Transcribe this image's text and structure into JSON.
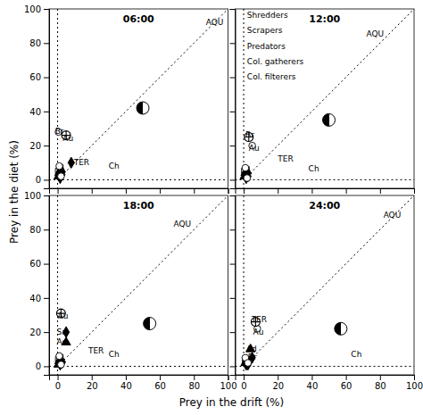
{
  "chart_data": [
    {
      "type": "scatter",
      "title": "06:00",
      "xlabel": "Prey in the drift (%)",
      "ylabel": "Prey in the diet (%)",
      "xlim": [
        -5,
        100
      ],
      "ylim": [
        -5,
        100
      ],
      "xticks": [
        0,
        20,
        40,
        60,
        80,
        100
      ],
      "yticks": [
        0,
        20,
        40,
        60,
        80,
        100
      ],
      "tick_labels": "y",
      "series": [
        {
          "type": "line",
          "line_style": "dotted",
          "color": "black",
          "x": [
            0,
            100
          ],
          "values": [
            0,
            100
          ]
        },
        {
          "type": "vline",
          "line_style": "dotted",
          "color": "black",
          "x": [
            0
          ]
        },
        {
          "type": "hline",
          "line_style": "dotted",
          "color": "black",
          "values": [
            0
          ]
        },
        {
          "type": "scatter",
          "marker": "square",
          "color": "white",
          "x": [
            0.5,
            1.0,
            1.5
          ],
          "values": [
            5,
            3,
            7
          ]
        },
        {
          "type": "scatter",
          "marker": "triangle",
          "color": "black",
          "x": [
            1.0,
            2.0,
            0.5
          ],
          "values": [
            4,
            6,
            2
          ]
        },
        {
          "type": "scatter",
          "marker": "diamond",
          "color": "black",
          "x": [
            1.5,
            2.5,
            8
          ],
          "values": [
            1,
            3,
            10
          ]
        },
        {
          "type": "scatter",
          "marker": "circle",
          "color": "white",
          "x": [
            1.0,
            2.0,
            0.5
          ],
          "values": [
            8,
            2,
            28
          ]
        },
        {
          "type": "scatter",
          "marker": "circle-plus",
          "color": "black",
          "x": [
            5
          ],
          "values": [
            26
          ]
        },
        {
          "type": "scatter",
          "marker": "half-circle",
          "color": "black",
          "x": [
            50
          ],
          "values": [
            42
          ]
        }
      ],
      "annotations": [
        {
          "text": "AQU",
          "x": 87,
          "y": 92
        },
        {
          "text": "Br",
          "x": -1.5,
          "y": 28
        },
        {
          "text": "Au",
          "x": 3,
          "y": 24
        },
        {
          "text": "TER",
          "x": 9.5,
          "y": 10
        },
        {
          "text": "Ch",
          "x": 30,
          "y": 8
        }
      ]
    },
    {
      "type": "scatter",
      "title": "12:00",
      "xlim": [
        -5,
        100
      ],
      "ylim": [
        -5,
        100
      ],
      "xticks": [
        0,
        20,
        40,
        60,
        80,
        100
      ],
      "yticks": [
        0,
        20,
        40,
        60,
        80,
        100
      ],
      "tick_labels": false,
      "series": [
        {
          "type": "line",
          "line_style": "dotted",
          "color": "black",
          "x": [
            0,
            100
          ],
          "values": [
            0,
            100
          ]
        },
        {
          "type": "vline",
          "line_style": "dotted",
          "color": "black",
          "x": [
            0
          ]
        },
        {
          "type": "hline",
          "line_style": "dotted",
          "color": "black",
          "values": [
            0
          ]
        },
        {
          "type": "scatter",
          "marker": "square",
          "color": "white",
          "x": [
            0.5,
            1.0,
            1.5
          ],
          "values": [
            5,
            3,
            6
          ]
        },
        {
          "type": "scatter",
          "marker": "triangle",
          "color": "black",
          "x": [
            1.0,
            2.0,
            0.5
          ],
          "values": [
            4,
            5,
            2
          ]
        },
        {
          "type": "scatter",
          "marker": "diamond",
          "color": "black",
          "x": [
            1.5,
            2.5
          ],
          "values": [
            1,
            2
          ]
        },
        {
          "type": "scatter",
          "marker": "circle",
          "color": "white",
          "x": [
            1.0,
            2.0,
            5
          ],
          "values": [
            7,
            1,
            20
          ]
        },
        {
          "type": "scatter",
          "marker": "circle-plus",
          "color": "black",
          "x": [
            3
          ],
          "values": [
            25
          ]
        },
        {
          "type": "scatter",
          "marker": "half-circle",
          "color": "black",
          "x": [
            50
          ],
          "values": [
            35
          ]
        }
      ],
      "annotations": [
        {
          "text": "AQU",
          "x": 72,
          "y": 85
        },
        {
          "text": "Shredders",
          "x": 2,
          "y": 96
        },
        {
          "text": "Scrapers",
          "x": 2,
          "y": 87
        },
        {
          "text": "Predators",
          "x": 2,
          "y": 78
        },
        {
          "text": "Col. gatherers",
          "x": 2,
          "y": 69
        },
        {
          "text": "Col. filterers",
          "x": 2,
          "y": 60
        },
        {
          "text": "Br",
          "x": 1,
          "y": 26
        },
        {
          "text": "Au",
          "x": 3,
          "y": 18
        },
        {
          "text": "TER",
          "x": 20,
          "y": 12
        },
        {
          "text": "Ch",
          "x": 38,
          "y": 6
        }
      ]
    },
    {
      "type": "scatter",
      "title": "18:00",
      "xlim": [
        -5,
        100
      ],
      "ylim": [
        -5,
        100
      ],
      "xticks": [
        0,
        20,
        40,
        60,
        80,
        100
      ],
      "yticks": [
        0,
        20,
        40,
        60,
        80,
        100
      ],
      "series": [
        {
          "type": "line",
          "line_style": "dotted",
          "color": "black",
          "x": [
            0,
            100
          ],
          "values": [
            0,
            100
          ]
        },
        {
          "type": "vline",
          "line_style": "dotted",
          "color": "black",
          "x": [
            0
          ]
        },
        {
          "type": "hline",
          "line_style": "dotted",
          "color": "black",
          "values": [
            0
          ]
        },
        {
          "type": "scatter",
          "marker": "square",
          "color": "white",
          "x": [
            0.5,
            1.0,
            1.5
          ],
          "values": [
            4,
            2,
            5
          ]
        },
        {
          "type": "scatter",
          "marker": "triangle",
          "color": "black",
          "x": [
            1.0,
            2.0,
            0.5,
            5
          ],
          "values": [
            3,
            4,
            1,
            14
          ]
        },
        {
          "type": "scatter",
          "marker": "diamond",
          "color": "black",
          "x": [
            1.5,
            2.5,
            5
          ],
          "values": [
            1,
            2,
            20
          ]
        },
        {
          "type": "scatter",
          "marker": "circle",
          "color": "white",
          "x": [
            1.0,
            2.0
          ],
          "values": [
            6,
            1
          ]
        },
        {
          "type": "scatter",
          "marker": "circle-plus",
          "color": "black",
          "x": [
            2
          ],
          "values": [
            31
          ]
        },
        {
          "type": "scatter",
          "marker": "half-circle",
          "color": "black",
          "x": [
            54
          ],
          "values": [
            25
          ]
        }
      ],
      "annotations": [
        {
          "text": "AQU",
          "x": 68,
          "y": 83
        },
        {
          "text": "Au",
          "x": 0,
          "y": 29
        },
        {
          "text": "Sa",
          "x": -0.5,
          "y": 20
        },
        {
          "text": "Ad",
          "x": -0.5,
          "y": 14
        },
        {
          "text": "TER",
          "x": 18,
          "y": 9
        },
        {
          "text": "Ch",
          "x": 30,
          "y": 7
        }
      ]
    },
    {
      "type": "scatter",
      "title": "24:00",
      "xlim": [
        -5,
        100
      ],
      "ylim": [
        -5,
        100
      ],
      "xticks": [
        0,
        20,
        40,
        60,
        80,
        100
      ],
      "yticks": [
        0,
        20,
        40,
        60,
        80,
        100
      ],
      "tick_labels": "x",
      "series": [
        {
          "type": "line",
          "line_style": "dotted",
          "color": "black",
          "x": [
            0,
            100
          ],
          "values": [
            0,
            100
          ]
        },
        {
          "type": "vline",
          "line_style": "dotted",
          "color": "black",
          "x": [
            0
          ]
        },
        {
          "type": "hline",
          "line_style": "dotted",
          "color": "black",
          "values": [
            0
          ]
        },
        {
          "type": "scatter",
          "marker": "square",
          "color": "white",
          "x": [
            1.0,
            1.5,
            2.0
          ],
          "values": [
            3,
            2,
            4
          ]
        },
        {
          "type": "scatter",
          "marker": "triangle",
          "color": "black",
          "x": [
            1.0,
            2.0,
            4
          ],
          "values": [
            2,
            3,
            10
          ]
        },
        {
          "type": "scatter",
          "marker": "diamond",
          "color": "black",
          "x": [
            1.5,
            2.5,
            5
          ],
          "values": [
            1,
            1,
            5
          ]
        },
        {
          "type": "scatter",
          "marker": "circle",
          "color": "white",
          "x": [
            1.0,
            2.5,
            8
          ],
          "values": [
            5,
            2,
            22
          ]
        },
        {
          "type": "scatter",
          "marker": "circle-plus",
          "color": "black",
          "x": [
            7
          ],
          "values": [
            26
          ]
        },
        {
          "type": "scatter",
          "marker": "half-circle",
          "color": "black",
          "x": [
            57
          ],
          "values": [
            22
          ]
        }
      ],
      "annotations": [
        {
          "text": "AQU",
          "x": 82,
          "y": 88
        },
        {
          "text": "TER",
          "x": 4.5,
          "y": 27
        },
        {
          "text": "Au",
          "x": 5.5,
          "y": 20
        },
        {
          "text": "Ad",
          "x": 1.5,
          "y": 10
        },
        {
          "text": "Br",
          "x": 2.5,
          "y": 5
        },
        {
          "text": "Ch",
          "x": 63,
          "y": 7
        }
      ]
    }
  ]
}
